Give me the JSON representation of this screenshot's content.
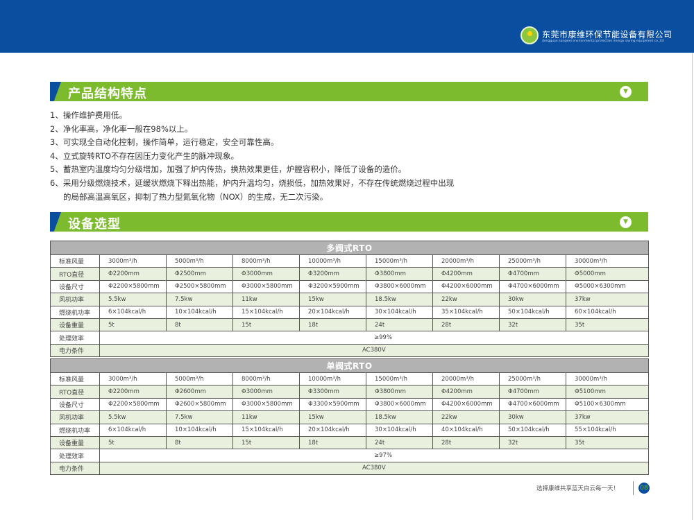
{
  "header": {
    "company_cn": "东莞市康维环保节能设备有限公司",
    "company_en": "dongguan kangwei environmental protection energy saving equipment co.,ltd",
    "brand_color": "#0a4ea0",
    "accent_color": "#7cbb2e"
  },
  "section1": {
    "title": "产品结构特点",
    "icon": "chevron-down-circle-icon"
  },
  "features": [
    "1、操作维护费用低。",
    "2、净化率高，净化率一般在98%以上。",
    "3、可实现全自动化控制，操作简单，运行稳定，安全可靠性高。",
    "4、立式旋转RTO不存在因压力变化产生的脉冲现象。",
    "5、蓄热室内温度均匀分级增加，加强了炉内传热，换热效果更佳，炉膛容积小，降低了设备的造价。",
    "6、采用分级燃烧技术，延缓状燃烧下释出热能，炉内升温均匀，烧损低，加热效果好，不存在传统燃烧过程中出现",
    "的局部高温高氧区，抑制了热力型氮氧化物（NOX）的生成，无二次污染。"
  ],
  "section2": {
    "title": "设备选型",
    "icon": "chevron-down-circle-icon"
  },
  "tables": [
    {
      "title": "多阀式RTO",
      "rows": [
        {
          "label": "标准风量",
          "values": [
            "3000m³/h",
            "5000m³/h",
            "8000m³/h",
            "10000m³/h",
            "15000m³/h",
            "20000m³/h",
            "25000m³/h",
            "30000m³/h"
          ]
        },
        {
          "label": "RTO直径",
          "values": [
            "Φ2200mm",
            "Φ2500mm",
            "Φ3000mm",
            "Φ3200mm",
            "Φ3800mm",
            "Φ4200mm",
            "Φ4700mm",
            "Φ5000mm"
          ]
        },
        {
          "label": "设备尺寸",
          "values": [
            "Φ2200×5800mm",
            "Φ2500×5800mm",
            "Φ3000×5800mm",
            "Φ3200×5900mm",
            "Φ3800×6000mm",
            "Φ4200×6000mm",
            "Φ4700×6000mm",
            "Φ5000×6300mm"
          ]
        },
        {
          "label": "风机功率",
          "values": [
            "5.5kw",
            "7.5kw",
            "11kw",
            "15kw",
            "18.5kw",
            "22kw",
            "30kw",
            "37kw"
          ]
        },
        {
          "label": "燃烧机功率",
          "values": [
            "6×104kcal/h",
            "10×104kcal/h",
            "15×104kcal/h",
            "20×104kcal/h",
            "30×104kcal/h",
            "35×104kcal/h",
            "50×104kcal/h",
            "60×104kcal/h"
          ]
        },
        {
          "label": "设备重量",
          "values": [
            "5t",
            "8t",
            "15t",
            "18t",
            "24t",
            "28t",
            "32t",
            "35t"
          ]
        }
      ],
      "efficiency_label": "处理效率",
      "efficiency": "≥99%",
      "power_label": "电力条件",
      "power": "AC380V"
    },
    {
      "title": "单阀式RTO",
      "rows": [
        {
          "label": "标准风量",
          "values": [
            "3000m³/h",
            "5000m³/h",
            "8000m³/h",
            "10000m³/h",
            "15000m³/h",
            "20000m³/h",
            "25000m³/h",
            "30000m³/h"
          ]
        },
        {
          "label": "RTO直径",
          "values": [
            "Φ2200mm",
            "Φ2600mm",
            "Φ3000mm",
            "Φ3300mm",
            "Φ3800mm",
            "Φ4200mm",
            "Φ4700mm",
            "Φ5100mm"
          ]
        },
        {
          "label": "设备尺寸",
          "values": [
            "Φ2200×5800mm",
            "Φ2600×5800mm",
            "Φ3000×5800mm",
            "Φ3300×5900mm",
            "Φ3800×6000mm",
            "Φ4200×6000mm",
            "Φ4700×6000mm",
            "Φ5100×6300mm"
          ]
        },
        {
          "label": "风机功率",
          "values": [
            "5.5kw",
            "7.5kw",
            "11kw",
            "15kw",
            "18.5kw",
            "22kw",
            "30kw",
            "37kw"
          ]
        },
        {
          "label": "燃烧机功率",
          "values": [
            "6×104kcal/h",
            "10×104kcal/h",
            "15×104kcal/h",
            "20×104kcal/h",
            "30×104kcal/h",
            "40×104kcal/h",
            "50×104kcal/h",
            "55×104kcal/h"
          ]
        },
        {
          "label": "设备重量",
          "values": [
            "5t",
            "8t",
            "15t",
            "18t",
            "24t",
            "28t",
            "32t",
            "35t"
          ]
        }
      ],
      "efficiency_label": "处理效率",
      "efficiency": "≥97%",
      "power_label": "电力条件",
      "power": "AC380V"
    }
  ],
  "footer": {
    "slogan": "选择康维共享蓝天白云每一天！",
    "page": "08"
  }
}
